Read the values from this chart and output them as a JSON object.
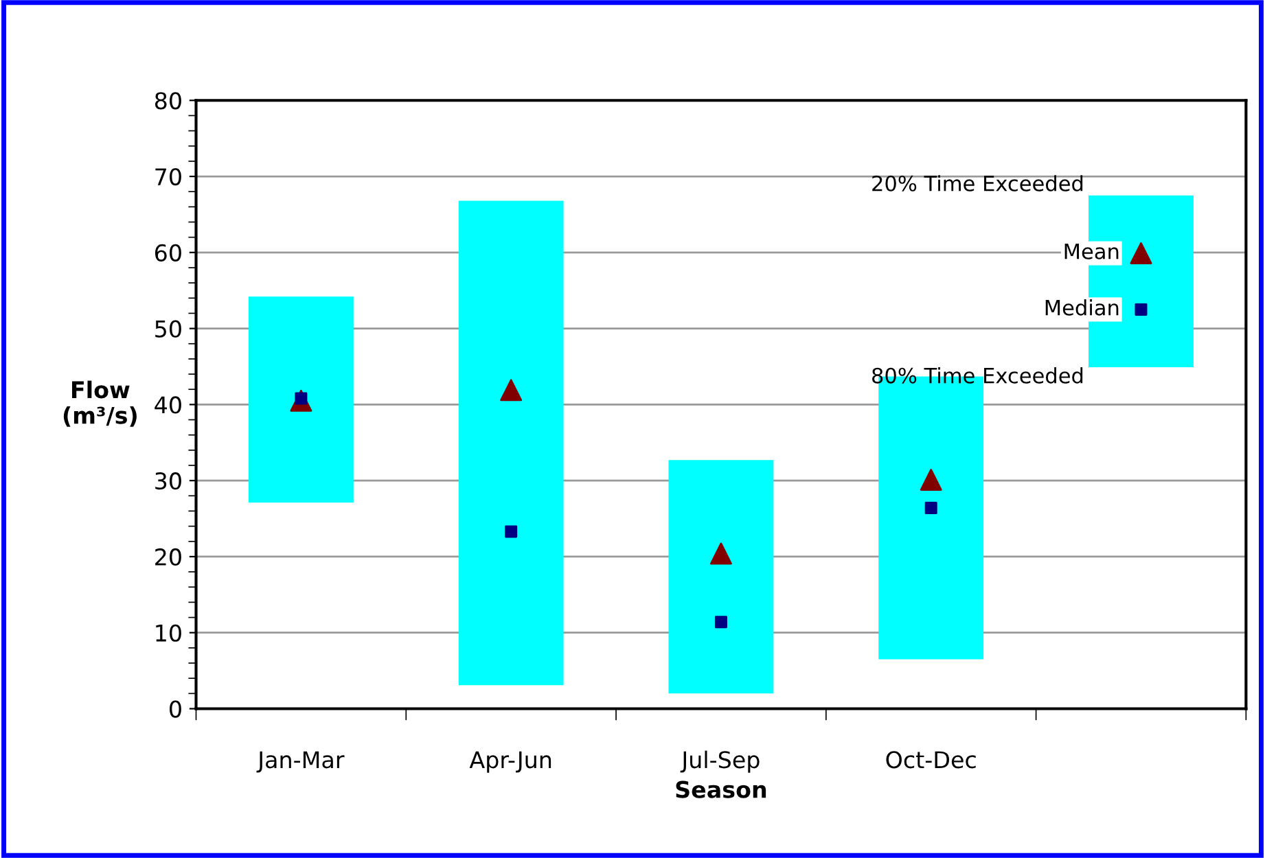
{
  "chart_data": {
    "type": "bar",
    "xlabel": "Season",
    "ylabel": "Flow\n(m³/s)",
    "categories": [
      "Jan-Mar",
      "Apr-Jun",
      "Jul-Sep",
      "Oct-Dec",
      null
    ],
    "series": [
      {
        "color": "#00ffff",
        "base": [
          27.1,
          3.1,
          2.0,
          6.5,
          44.9
        ],
        "values": [
          27.1,
          63.7,
          30.7,
          37.2,
          22.6
        ]
      },
      {
        "type": "scatter",
        "name": "Mean",
        "color": "#800000",
        "marker": "triangle",
        "values": [
          40.5,
          41.9,
          20.4,
          30.1,
          59.9
        ]
      },
      {
        "type": "scatter",
        "name": "Median",
        "color": "#000080",
        "marker": "square",
        "values": [
          40.8,
          23.3,
          11.4,
          26.4,
          52.5
        ]
      }
    ],
    "annotations": [
      "20% Time Exceeded",
      "80% Time Exceeded"
    ],
    "ylim": [
      0,
      80
    ],
    "yticks": [
      0,
      10,
      20,
      30,
      40,
      50,
      60,
      70,
      80
    ],
    "grid": "y",
    "legend": false
  }
}
